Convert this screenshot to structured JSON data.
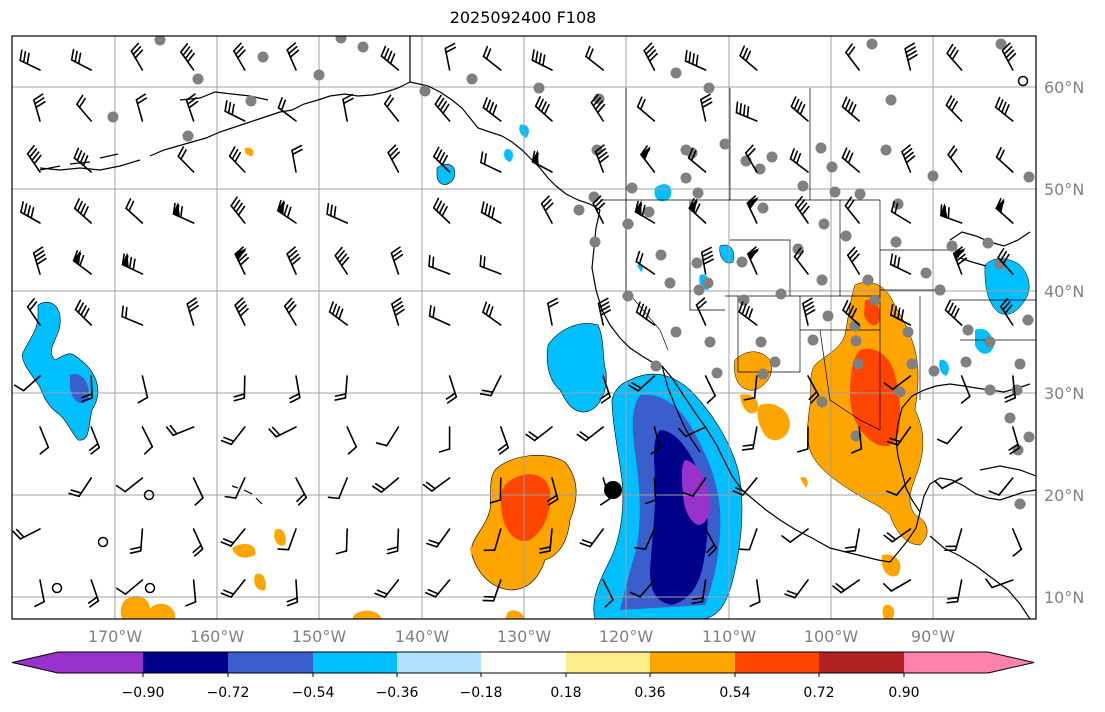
{
  "title": "2025092400 F108",
  "lat_labels": [
    "60°N",
    "50°N",
    "40°N",
    "30°N",
    "20°N",
    "10°N"
  ],
  "lon_labels": [
    "170°W",
    "160°W",
    "150°W",
    "140°W",
    "130°W",
    "120°W",
    "110°W",
    "100°W",
    "90°W"
  ],
  "colorbar": {
    "colors": [
      "#9932cc",
      "#00008b",
      "#3a5fcd",
      "#00bfff",
      "#b0e2ff",
      "#ffffff",
      "#ffec8b",
      "#ffa500",
      "#ff4500",
      "#b22222",
      "#ff82ab"
    ],
    "tick_labels": [
      "−0.90",
      "−0.72",
      "−0.54",
      "−0.36",
      "−0.18",
      "0.18",
      "0.36",
      "0.54",
      "0.72",
      "0.90"
    ]
  },
  "colors": {
    "land_line": "#000000",
    "grid": "#a0a0a0",
    "station_dot": "#808080"
  }
}
